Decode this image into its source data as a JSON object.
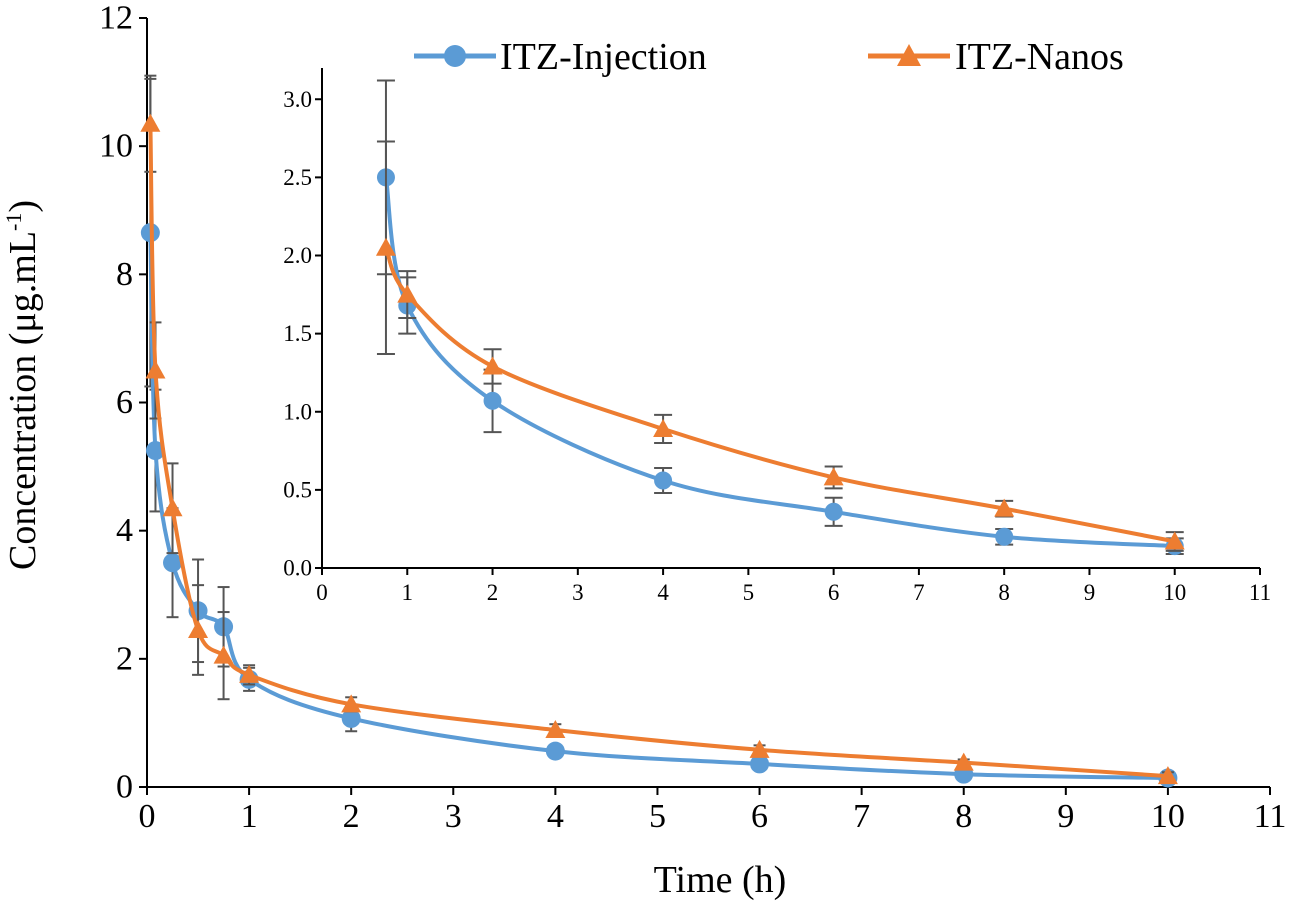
{
  "chart_data": {
    "type": "line",
    "xlabel": "Time (h)",
    "ylabel_prefix": "Concentration (μg.mL",
    "ylabel_sup": "-1",
    "ylabel_suffix": ")",
    "xlim": [
      0,
      11
    ],
    "ylim": [
      0,
      12
    ],
    "x_ticks": [
      0,
      1,
      2,
      3,
      4,
      5,
      6,
      7,
      8,
      9,
      10,
      11
    ],
    "y_ticks": [
      0,
      2,
      4,
      6,
      8,
      10,
      12
    ],
    "x_tick_labels": [
      "0",
      "1",
      "2",
      "3",
      "4",
      "5",
      "6",
      "7",
      "8",
      "9",
      "10",
      "11"
    ],
    "y_tick_labels": [
      "0",
      "2",
      "4",
      "6",
      "8",
      "10",
      "12"
    ],
    "legend_position": "top",
    "series": [
      {
        "name": "ITZ-Injection",
        "color": "#5B9BD5",
        "marker": "circle",
        "x": [
          0.033,
          0.083,
          0.25,
          0.5,
          0.75,
          1,
          2,
          4,
          6,
          8,
          10
        ],
        "values": [
          8.65,
          5.25,
          3.5,
          2.75,
          2.5,
          1.68,
          1.07,
          0.56,
          0.36,
          0.2,
          0.14
        ],
        "errors": [
          2.4,
          0.95,
          0.85,
          0.8,
          0.62,
          0.18,
          0.2,
          0.08,
          0.09,
          0.05,
          0.05
        ]
      },
      {
        "name": "ITZ-Nanos",
        "color": "#ED7D31",
        "marker": "triangle",
        "x": [
          0.033,
          0.083,
          0.25,
          0.5,
          0.75,
          1,
          2,
          4,
          6,
          8,
          10
        ],
        "values": [
          10.35,
          6.5,
          4.35,
          2.45,
          2.05,
          1.75,
          1.29,
          0.89,
          0.58,
          0.38,
          0.17
        ],
        "errors": [
          0.75,
          0.75,
          0.7,
          0.7,
          0.68,
          0.15,
          0.11,
          0.09,
          0.07,
          0.05,
          0.06
        ]
      }
    ],
    "inset": {
      "xlim": [
        0,
        11
      ],
      "ylim": [
        0,
        3.2
      ],
      "x_ticks": [
        0,
        1,
        2,
        3,
        4,
        5,
        6,
        7,
        8,
        9,
        10,
        11
      ],
      "y_ticks": [
        0,
        0.5,
        1.0,
        1.5,
        2.0,
        2.5,
        3.0
      ],
      "x_tick_labels": [
        "0",
        "1",
        "2",
        "3",
        "4",
        "5",
        "6",
        "7",
        "8",
        "9",
        "10",
        "11"
      ],
      "y_tick_labels": [
        "0.0",
        "0.5",
        "1.0",
        "1.5",
        "2.0",
        "2.5",
        "3.0"
      ],
      "first_x": 0.75
    }
  }
}
